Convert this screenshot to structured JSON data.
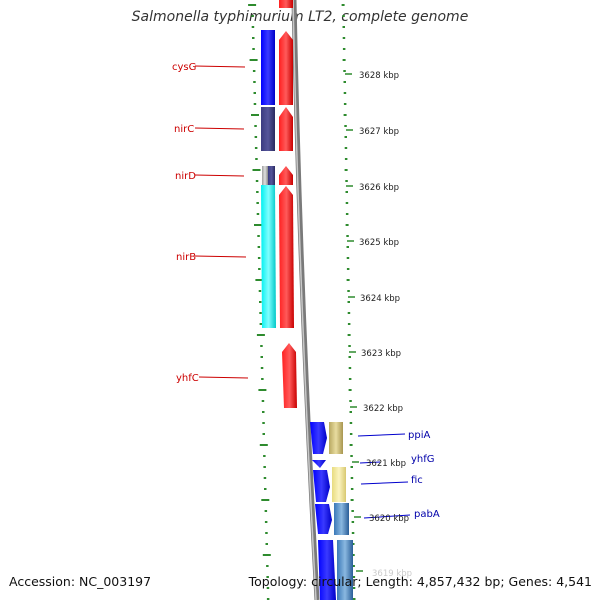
{
  "title": "Salmonella typhimurium LT2, complete genome",
  "footer": {
    "accession": "Accession: NC_003197",
    "topology": "Topology: circular; Length: 4,857,432 bp; Genes: 4,541"
  },
  "colors": {
    "label_red": "#cc0000",
    "label_blue": "#0000aa",
    "tick_green": "#2e8b2e",
    "backbone": "#808080",
    "gene_blue": "#0000ee",
    "gene_dark": "#44447a",
    "gene_cyan": "#00e5e5",
    "gene_red": "#ee0000",
    "gene_khaki": "#c8b878",
    "gene_steel": "#4a88c0"
  },
  "scale_labels": [
    "3628 kbp",
    "3627 kbp",
    "3626 kbp",
    "3625 kbp",
    "3624 kbp",
    "3623 kbp",
    "3622 kbp",
    "3621 kbp",
    "3620 kbp",
    "3619 kbp"
  ],
  "left_genes": [
    {
      "name": "cysG",
      "color": "red"
    },
    {
      "name": "nirC",
      "color": "red"
    },
    {
      "name": "nirD",
      "color": "red"
    },
    {
      "name": "nirB",
      "color": "red"
    },
    {
      "name": "yhfC",
      "color": "red"
    }
  ],
  "right_genes": [
    {
      "name": "ppiA",
      "color": "blue"
    },
    {
      "name": "yhfG",
      "color": "blue"
    },
    {
      "name": "fic",
      "color": "blue"
    },
    {
      "name": "pabA",
      "color": "blue"
    }
  ]
}
